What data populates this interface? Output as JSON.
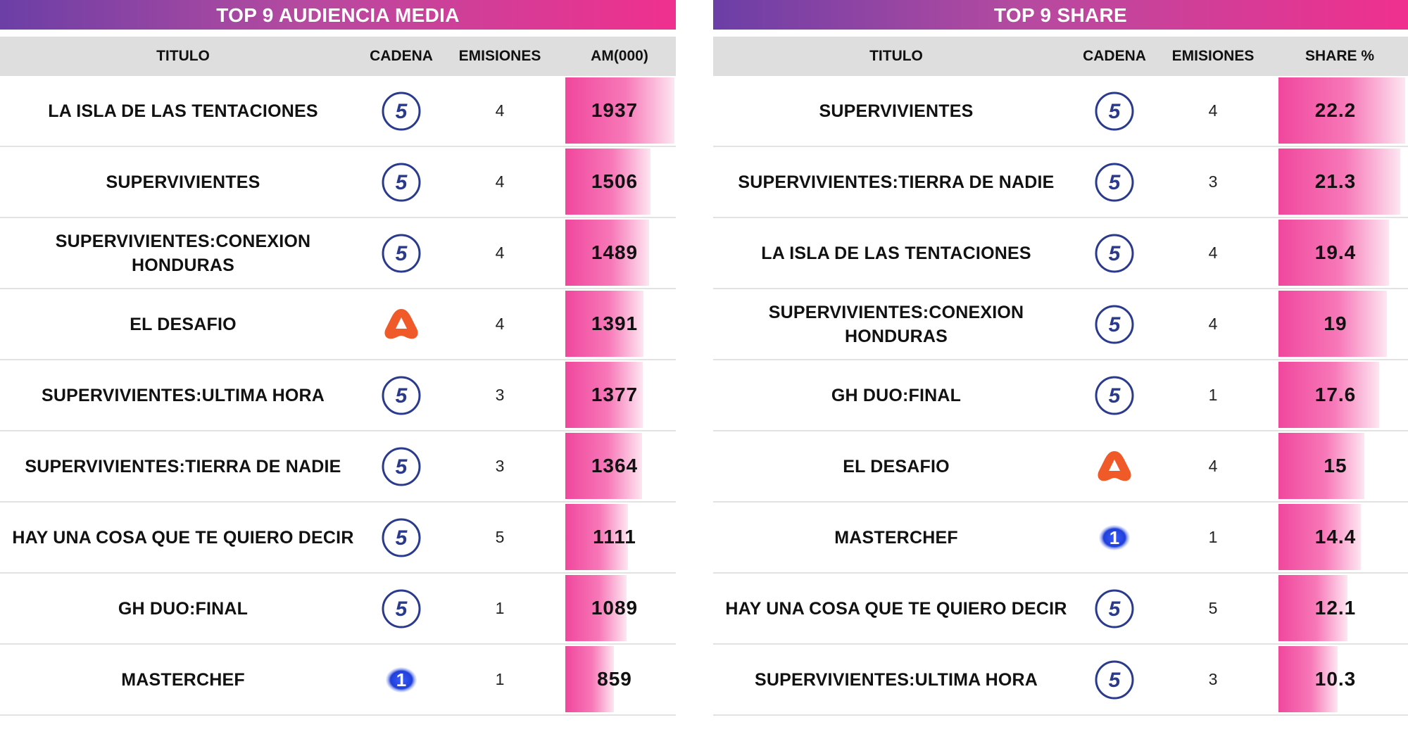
{
  "chart_data": [
    {
      "type": "table",
      "title": "TOP 9 AUDIENCIA MEDIA",
      "columns": [
        "TITULO",
        "CADENA",
        "EMISIONES",
        "AM(000)"
      ],
      "value_max": 1937,
      "rows": [
        {
          "title": "LA ISLA DE LAS TENTACIONES",
          "channel": "telecinco",
          "emissions": "4",
          "value": 1937
        },
        {
          "title": "SUPERVIVIENTES",
          "channel": "telecinco",
          "emissions": "4",
          "value": 1506
        },
        {
          "title": "SUPERVIVIENTES:CONEXION HONDURAS",
          "channel": "telecinco",
          "emissions": "4",
          "value": 1489
        },
        {
          "title": "EL DESAFIO",
          "channel": "antena3",
          "emissions": "4",
          "value": 1391
        },
        {
          "title": "SUPERVIVIENTES:ULTIMA HORA",
          "channel": "telecinco",
          "emissions": "3",
          "value": 1377
        },
        {
          "title": "SUPERVIVIENTES:TIERRA DE NADIE",
          "channel": "telecinco",
          "emissions": "3",
          "value": 1364
        },
        {
          "title": "HAY UNA COSA QUE TE QUIERO DECIR",
          "channel": "telecinco",
          "emissions": "5",
          "value": 1111
        },
        {
          "title": "GH DUO:FINAL",
          "channel": "telecinco",
          "emissions": "1",
          "value": 1089
        },
        {
          "title": "MASTERCHEF",
          "channel": "la1",
          "emissions": "1",
          "value": 859
        }
      ]
    },
    {
      "type": "table",
      "title": "TOP 9 SHARE",
      "columns": [
        "TITULO",
        "CADENA",
        "EMISIONES",
        "SHARE %"
      ],
      "value_max": 22.2,
      "rows": [
        {
          "title": "SUPERVIVIENTES",
          "channel": "telecinco",
          "emissions": "4",
          "value": 22.2
        },
        {
          "title": "SUPERVIVIENTES:TIERRA DE NADIE",
          "channel": "telecinco",
          "emissions": "3",
          "value": 21.3
        },
        {
          "title": "LA ISLA DE LAS TENTACIONES",
          "channel": "telecinco",
          "emissions": "4",
          "value": 19.4
        },
        {
          "title": "SUPERVIVIENTES:CONEXION HONDURAS",
          "channel": "telecinco",
          "emissions": "4",
          "value": 19
        },
        {
          "title": "GH DUO:FINAL",
          "channel": "telecinco",
          "emissions": "1",
          "value": 17.6
        },
        {
          "title": "EL DESAFIO",
          "channel": "antena3",
          "emissions": "4",
          "value": 15
        },
        {
          "title": "MASTERCHEF",
          "channel": "la1",
          "emissions": "1",
          "value": 14.4
        },
        {
          "title": "HAY UNA COSA QUE TE QUIERO DECIR",
          "channel": "telecinco",
          "emissions": "5",
          "value": 12.1
        },
        {
          "title": "SUPERVIVIENTES:ULTIMA HORA",
          "channel": "telecinco",
          "emissions": "3",
          "value": 10.3
        }
      ]
    }
  ],
  "colors": {
    "banner_start": "#6b3fa6",
    "banner_end": "#f0308e",
    "bar": "#f0479d",
    "header_bg": "#dedede",
    "telecinco": "#2a3a8c",
    "antena3": "#f05a28",
    "la1": "#1f3fd8"
  },
  "icons": {
    "telecinco": "telecinco-logo-icon",
    "antena3": "antena3-logo-icon",
    "la1": "la1-logo-icon"
  }
}
